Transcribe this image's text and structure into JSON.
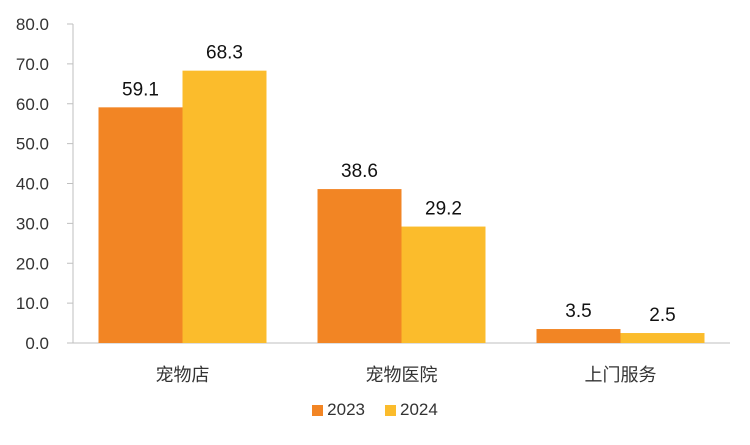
{
  "chart_data": {
    "type": "bar",
    "categories": [
      "宠物店",
      "宠物医院",
      "上门服务"
    ],
    "series": [
      {
        "name": "2023",
        "values": [
          59.1,
          38.6,
          3.5
        ],
        "labels": [
          "59.1",
          "38.6",
          "3.5"
        ],
        "color": "#F28524"
      },
      {
        "name": "2024",
        "values": [
          68.3,
          29.2,
          2.5
        ],
        "labels": [
          "68.3",
          "29.2",
          "2.5"
        ],
        "color": "#FBBC2C"
      }
    ],
    "y_ticks": [
      "0.0",
      "10.0",
      "20.0",
      "30.0",
      "40.0",
      "50.0",
      "60.0",
      "70.0",
      "80.0"
    ],
    "ylim": [
      0,
      80
    ],
    "grid": false,
    "legend_position": "bottom",
    "title": "",
    "xlabel": "",
    "ylabel": ""
  }
}
